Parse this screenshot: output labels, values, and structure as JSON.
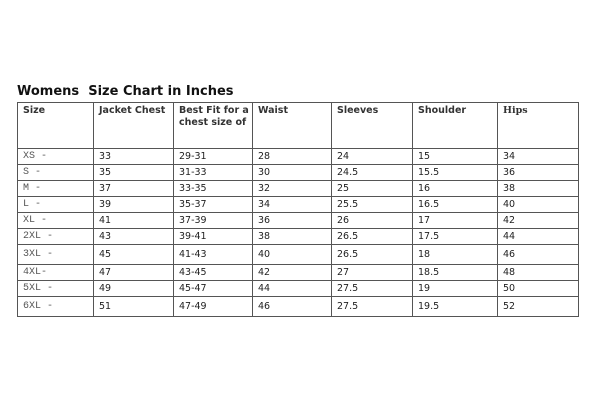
{
  "title": "Womens  Size Chart in Inches",
  "table": {
    "headers": [
      "Size",
      "Jacket Chest",
      "Best Fit for a chest size of",
      "Waist",
      "Sleeves",
      "Shoulder",
      "Hips"
    ],
    "rows": [
      [
        "XS -",
        "33",
        "29-31",
        "28",
        "24",
        "15",
        "34"
      ],
      [
        "S -",
        "35",
        "31-33",
        "30",
        "24.5",
        "15.5",
        "36"
      ],
      [
        "M -",
        "37",
        "33-35",
        "32",
        "25",
        "16",
        "38"
      ],
      [
        "L -",
        "39",
        "35-37",
        "34",
        "25.5",
        "16.5",
        "40"
      ],
      [
        "XL -",
        "41",
        "37-39",
        "36",
        "26",
        "17",
        "42"
      ],
      [
        "2XL -",
        "43",
        "39-41",
        "38",
        "26.5",
        "17.5",
        "44"
      ],
      [
        "3XL -",
        "45",
        "41-43",
        "40",
        "26.5",
        "18",
        "46"
      ],
      [
        "4XL-",
        "47",
        "43-45",
        "42",
        "27",
        "18.5",
        "48"
      ],
      [
        "5XL -",
        "49",
        "45-47",
        "44",
        "27.5",
        "19",
        "50"
      ],
      [
        "6XL -",
        "51",
        "47-49",
        "46",
        "27.5",
        "19.5",
        "52"
      ]
    ]
  }
}
